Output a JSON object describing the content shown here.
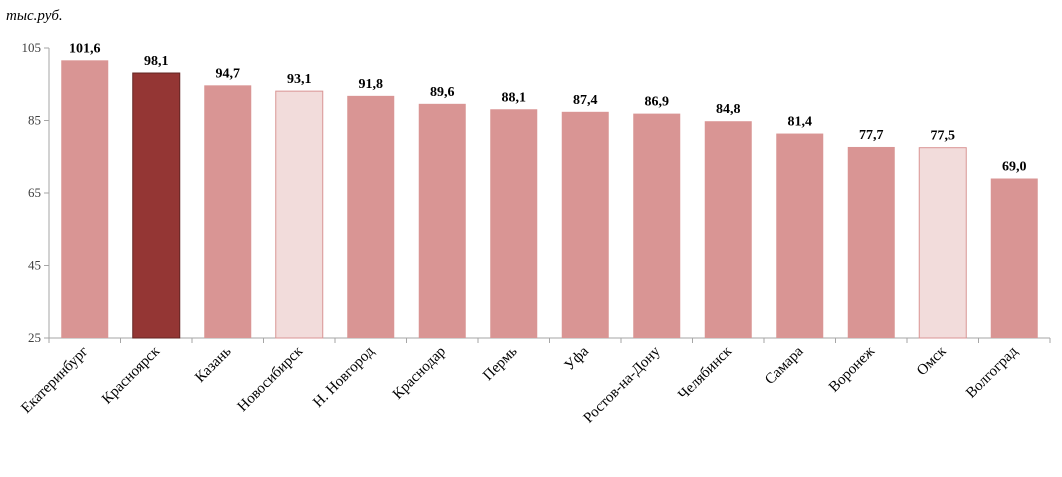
{
  "chart_data": {
    "type": "bar",
    "unit_label": "тыс.руб.",
    "categories": [
      "Екатеринбург",
      "Красноярск",
      "Казань",
      "Новосибирск",
      "Н. Новгород",
      "Краснодар",
      "Пермь",
      "Уфа",
      "Ростов-на-Дону",
      "Челябинск",
      "Самара",
      "Воронеж",
      "Омск",
      "Волгоград"
    ],
    "values": [
      101.6,
      98.1,
      94.7,
      93.1,
      91.8,
      89.6,
      88.1,
      87.4,
      86.9,
      84.8,
      81.4,
      77.7,
      77.5,
      69.0
    ],
    "value_labels": [
      "101,6",
      "98,1",
      "94,7",
      "93,1",
      "91,8",
      "89,6",
      "88,1",
      "87,4",
      "86,9",
      "84,8",
      "81,4",
      "77,7",
      "77,5",
      "69,0"
    ],
    "bar_colors": [
      "#d99594",
      "#943634",
      "#d99594",
      "#f2dcdb",
      "#d99594",
      "#d99594",
      "#d99594",
      "#d99594",
      "#d99594",
      "#d99594",
      "#d99594",
      "#d99594",
      "#f2dcdb",
      "#d99594"
    ],
    "ylim": [
      25,
      105
    ],
    "yticks": [
      25,
      45,
      65,
      85,
      105
    ],
    "grid": false,
    "legend": "none"
  }
}
